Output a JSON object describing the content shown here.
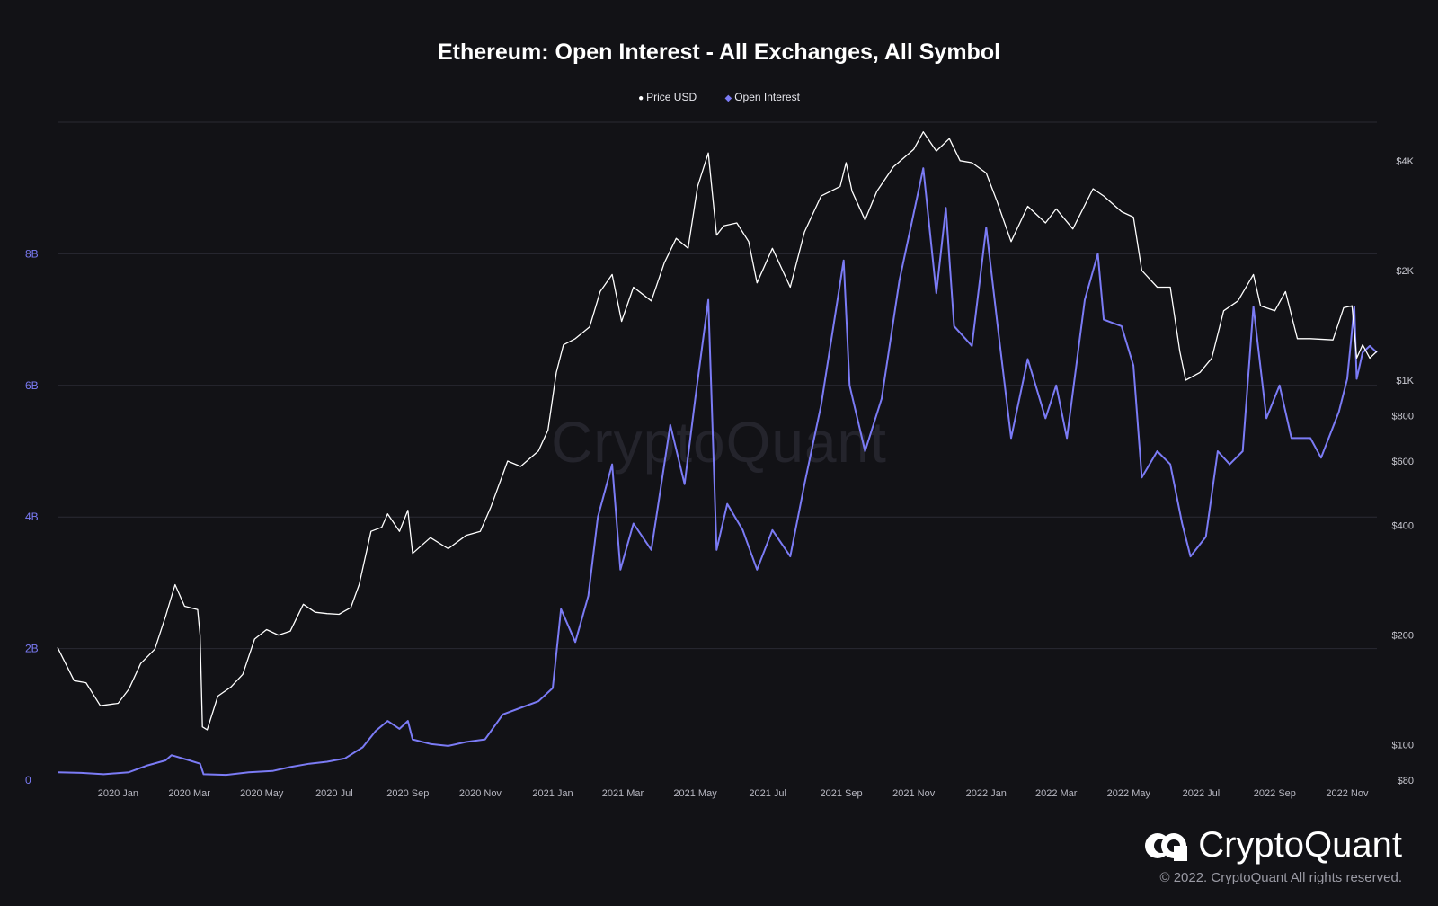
{
  "chart_data": {
    "type": "line",
    "title": "Ethereum: Open Interest - All Exchanges, All Symbol",
    "legend": [
      "Price USD",
      "Open Interest"
    ],
    "legend_position": "top-center",
    "grid": true,
    "x_ticks": [
      "2020 Jan",
      "2020 Mar",
      "2020 May",
      "2020 Jul",
      "2020 Sep",
      "2020 Nov",
      "2021 Jan",
      "2021 Mar",
      "2021 May",
      "2021 Jul",
      "2021 Sep",
      "2021 Nov",
      "2022 Jan",
      "2022 Mar",
      "2022 May",
      "2022 Jul",
      "2022 Sep",
      "2022 Nov"
    ],
    "y_left": {
      "ticks": [
        "0",
        "2B",
        "4B",
        "6B",
        "8B"
      ],
      "ylim": [
        0,
        10000000000
      ],
      "scale": "linear"
    },
    "y_right": {
      "ticks": [
        "$80",
        "$100",
        "$200",
        "$400",
        "$600",
        "$800",
        "$1K",
        "$2K",
        "$4K"
      ],
      "ylim": [
        80,
        5100
      ],
      "scale": "log"
    },
    "series": [
      {
        "name": "Price USD",
        "axis": "right",
        "color": "#ffffff",
        "points": [
          [
            "2019-11-11",
            185
          ],
          [
            "2019-11-25",
            150
          ],
          [
            "2019-12-05",
            148
          ],
          [
            "2019-12-17",
            128
          ],
          [
            "2020-01-01",
            130
          ],
          [
            "2020-01-10",
            142
          ],
          [
            "2020-01-20",
            167
          ],
          [
            "2020-02-01",
            183
          ],
          [
            "2020-02-10",
            225
          ],
          [
            "2020-02-18",
            275
          ],
          [
            "2020-02-26",
            240
          ],
          [
            "2020-03-08",
            235
          ],
          [
            "2020-03-10",
            200
          ],
          [
            "2020-03-12",
            112
          ],
          [
            "2020-03-16",
            110
          ],
          [
            "2020-03-25",
            136
          ],
          [
            "2020-04-05",
            144
          ],
          [
            "2020-04-15",
            156
          ],
          [
            "2020-04-25",
            195
          ],
          [
            "2020-05-05",
            207
          ],
          [
            "2020-05-15",
            200
          ],
          [
            "2020-05-25",
            205
          ],
          [
            "2020-06-05",
            243
          ],
          [
            "2020-06-15",
            231
          ],
          [
            "2020-06-25",
            229
          ],
          [
            "2020-07-05",
            228
          ],
          [
            "2020-07-15",
            238
          ],
          [
            "2020-07-22",
            275
          ],
          [
            "2020-08-01",
            385
          ],
          [
            "2020-08-10",
            395
          ],
          [
            "2020-08-15",
            430
          ],
          [
            "2020-08-25",
            385
          ],
          [
            "2020-09-01",
            440
          ],
          [
            "2020-09-05",
            335
          ],
          [
            "2020-09-20",
            370
          ],
          [
            "2020-10-05",
            345
          ],
          [
            "2020-10-20",
            375
          ],
          [
            "2020-11-01",
            385
          ],
          [
            "2020-11-10",
            450
          ],
          [
            "2020-11-24",
            600
          ],
          [
            "2020-12-05",
            580
          ],
          [
            "2020-12-20",
            640
          ],
          [
            "2020-12-28",
            730
          ],
          [
            "2021-01-04",
            1050
          ],
          [
            "2021-01-10",
            1250
          ],
          [
            "2021-01-20",
            1300
          ],
          [
            "2021-02-01",
            1400
          ],
          [
            "2021-02-10",
            1750
          ],
          [
            "2021-02-20",
            1950
          ],
          [
            "2021-02-28",
            1450
          ],
          [
            "2021-03-10",
            1800
          ],
          [
            "2021-03-25",
            1650
          ],
          [
            "2021-04-05",
            2100
          ],
          [
            "2021-04-15",
            2450
          ],
          [
            "2021-04-25",
            2300
          ],
          [
            "2021-05-03",
            3400
          ],
          [
            "2021-05-12",
            4200
          ],
          [
            "2021-05-19",
            2500
          ],
          [
            "2021-05-25",
            2650
          ],
          [
            "2021-06-05",
            2700
          ],
          [
            "2021-06-15",
            2400
          ],
          [
            "2021-06-22",
            1850
          ],
          [
            "2021-07-05",
            2300
          ],
          [
            "2021-07-20",
            1800
          ],
          [
            "2021-08-01",
            2550
          ],
          [
            "2021-08-15",
            3200
          ],
          [
            "2021-08-31",
            3400
          ],
          [
            "2021-09-05",
            3950
          ],
          [
            "2021-09-10",
            3300
          ],
          [
            "2021-09-21",
            2750
          ],
          [
            "2021-10-01",
            3300
          ],
          [
            "2021-10-15",
            3850
          ],
          [
            "2021-11-01",
            4300
          ],
          [
            "2021-11-09",
            4800
          ],
          [
            "2021-11-20",
            4250
          ],
          [
            "2021-12-01",
            4600
          ],
          [
            "2021-12-10",
            4000
          ],
          [
            "2021-12-20",
            3950
          ],
          [
            "2022-01-01",
            3700
          ],
          [
            "2022-01-10",
            3100
          ],
          [
            "2022-01-22",
            2400
          ],
          [
            "2022-02-05",
            3000
          ],
          [
            "2022-02-20",
            2700
          ],
          [
            "2022-03-01",
            2950
          ],
          [
            "2022-03-15",
            2600
          ],
          [
            "2022-04-01",
            3350
          ],
          [
            "2022-04-10",
            3200
          ],
          [
            "2022-04-25",
            2900
          ],
          [
            "2022-05-05",
            2800
          ],
          [
            "2022-05-12",
            2000
          ],
          [
            "2022-05-25",
            1800
          ],
          [
            "2022-06-05",
            1800
          ],
          [
            "2022-06-13",
            1200
          ],
          [
            "2022-06-18",
            1000
          ],
          [
            "2022-06-30",
            1050
          ],
          [
            "2022-07-10",
            1150
          ],
          [
            "2022-07-20",
            1550
          ],
          [
            "2022-08-01",
            1650
          ],
          [
            "2022-08-14",
            1950
          ],
          [
            "2022-08-20",
            1600
          ],
          [
            "2022-09-01",
            1550
          ],
          [
            "2022-09-10",
            1750
          ],
          [
            "2022-09-20",
            1300
          ],
          [
            "2022-10-01",
            1300
          ],
          [
            "2022-10-20",
            1290
          ],
          [
            "2022-10-29",
            1580
          ],
          [
            "2022-11-05",
            1600
          ],
          [
            "2022-11-09",
            1150
          ],
          [
            "2022-11-14",
            1250
          ],
          [
            "2022-11-20",
            1150
          ],
          [
            "2022-11-26",
            1200
          ]
        ]
      },
      {
        "name": "Open Interest",
        "axis": "left",
        "color": "#7B7BF5",
        "points": [
          [
            "2019-11-11",
            0.12
          ],
          [
            "2019-12-01",
            0.11
          ],
          [
            "2019-12-20",
            0.09
          ],
          [
            "2020-01-10",
            0.12
          ],
          [
            "2020-01-25",
            0.22
          ],
          [
            "2020-02-10",
            0.3
          ],
          [
            "2020-02-15",
            0.38
          ],
          [
            "2020-03-01",
            0.3
          ],
          [
            "2020-03-10",
            0.25
          ],
          [
            "2020-03-13",
            0.09
          ],
          [
            "2020-04-01",
            0.08
          ],
          [
            "2020-04-20",
            0.12
          ],
          [
            "2020-05-10",
            0.14
          ],
          [
            "2020-05-25",
            0.2
          ],
          [
            "2020-06-10",
            0.25
          ],
          [
            "2020-06-25",
            0.28
          ],
          [
            "2020-07-10",
            0.33
          ],
          [
            "2020-07-25",
            0.5
          ],
          [
            "2020-08-05",
            0.75
          ],
          [
            "2020-08-15",
            0.9
          ],
          [
            "2020-08-25",
            0.78
          ],
          [
            "2020-09-01",
            0.9
          ],
          [
            "2020-09-05",
            0.62
          ],
          [
            "2020-09-20",
            0.55
          ],
          [
            "2020-10-05",
            0.52
          ],
          [
            "2020-10-20",
            0.58
          ],
          [
            "2020-11-05",
            0.62
          ],
          [
            "2020-11-20",
            1.0
          ],
          [
            "2020-12-05",
            1.1
          ],
          [
            "2020-12-20",
            1.2
          ],
          [
            "2021-01-01",
            1.4
          ],
          [
            "2021-01-08",
            2.6
          ],
          [
            "2021-01-20",
            2.1
          ],
          [
            "2021-01-31",
            2.8
          ],
          [
            "2021-02-08",
            4.0
          ],
          [
            "2021-02-20",
            4.8
          ],
          [
            "2021-02-27",
            3.2
          ],
          [
            "2021-03-10",
            3.9
          ],
          [
            "2021-03-25",
            3.5
          ],
          [
            "2021-04-10",
            5.4
          ],
          [
            "2021-04-22",
            4.5
          ],
          [
            "2021-05-01",
            5.8
          ],
          [
            "2021-05-12",
            7.3
          ],
          [
            "2021-05-19",
            3.5
          ],
          [
            "2021-05-28",
            4.2
          ],
          [
            "2021-06-10",
            3.8
          ],
          [
            "2021-06-22",
            3.2
          ],
          [
            "2021-07-05",
            3.8
          ],
          [
            "2021-07-20",
            3.4
          ],
          [
            "2021-08-01",
            4.5
          ],
          [
            "2021-08-15",
            5.7
          ],
          [
            "2021-09-03",
            7.9
          ],
          [
            "2021-09-08",
            6.0
          ],
          [
            "2021-09-21",
            5.0
          ],
          [
            "2021-10-05",
            5.8
          ],
          [
            "2021-10-20",
            7.6
          ],
          [
            "2021-11-09",
            9.3
          ],
          [
            "2021-11-20",
            7.4
          ],
          [
            "2021-11-28",
            8.7
          ],
          [
            "2021-12-05",
            6.9
          ],
          [
            "2021-12-20",
            6.6
          ],
          [
            "2022-01-01",
            8.4
          ],
          [
            "2022-01-10",
            7.0
          ],
          [
            "2022-01-22",
            5.2
          ],
          [
            "2022-02-05",
            6.4
          ],
          [
            "2022-02-20",
            5.5
          ],
          [
            "2022-03-01",
            6.0
          ],
          [
            "2022-03-10",
            5.2
          ],
          [
            "2022-03-25",
            7.3
          ],
          [
            "2022-04-05",
            8.0
          ],
          [
            "2022-04-10",
            7.0
          ],
          [
            "2022-04-25",
            6.9
          ],
          [
            "2022-05-05",
            6.3
          ],
          [
            "2022-05-12",
            4.6
          ],
          [
            "2022-05-25",
            5.0
          ],
          [
            "2022-06-05",
            4.8
          ],
          [
            "2022-06-15",
            3.9
          ],
          [
            "2022-06-22",
            3.4
          ],
          [
            "2022-07-05",
            3.7
          ],
          [
            "2022-07-15",
            5.0
          ],
          [
            "2022-07-25",
            4.8
          ],
          [
            "2022-08-05",
            5.0
          ],
          [
            "2022-08-14",
            7.2
          ],
          [
            "2022-08-25",
            5.5
          ],
          [
            "2022-09-05",
            6.0
          ],
          [
            "2022-09-15",
            5.2
          ],
          [
            "2022-10-01",
            5.2
          ],
          [
            "2022-10-10",
            4.9
          ],
          [
            "2022-10-25",
            5.6
          ],
          [
            "2022-11-01",
            6.1
          ],
          [
            "2022-11-07",
            7.2
          ],
          [
            "2022-11-09",
            6.1
          ],
          [
            "2022-11-14",
            6.5
          ],
          [
            "2022-11-20",
            6.6
          ],
          [
            "2022-11-26",
            6.5
          ]
        ]
      }
    ]
  },
  "brand": {
    "name": "CryptoQuant",
    "copyright": "© 2022. CryptoQuant All rights reserved."
  },
  "watermark": "CryptoQuant"
}
